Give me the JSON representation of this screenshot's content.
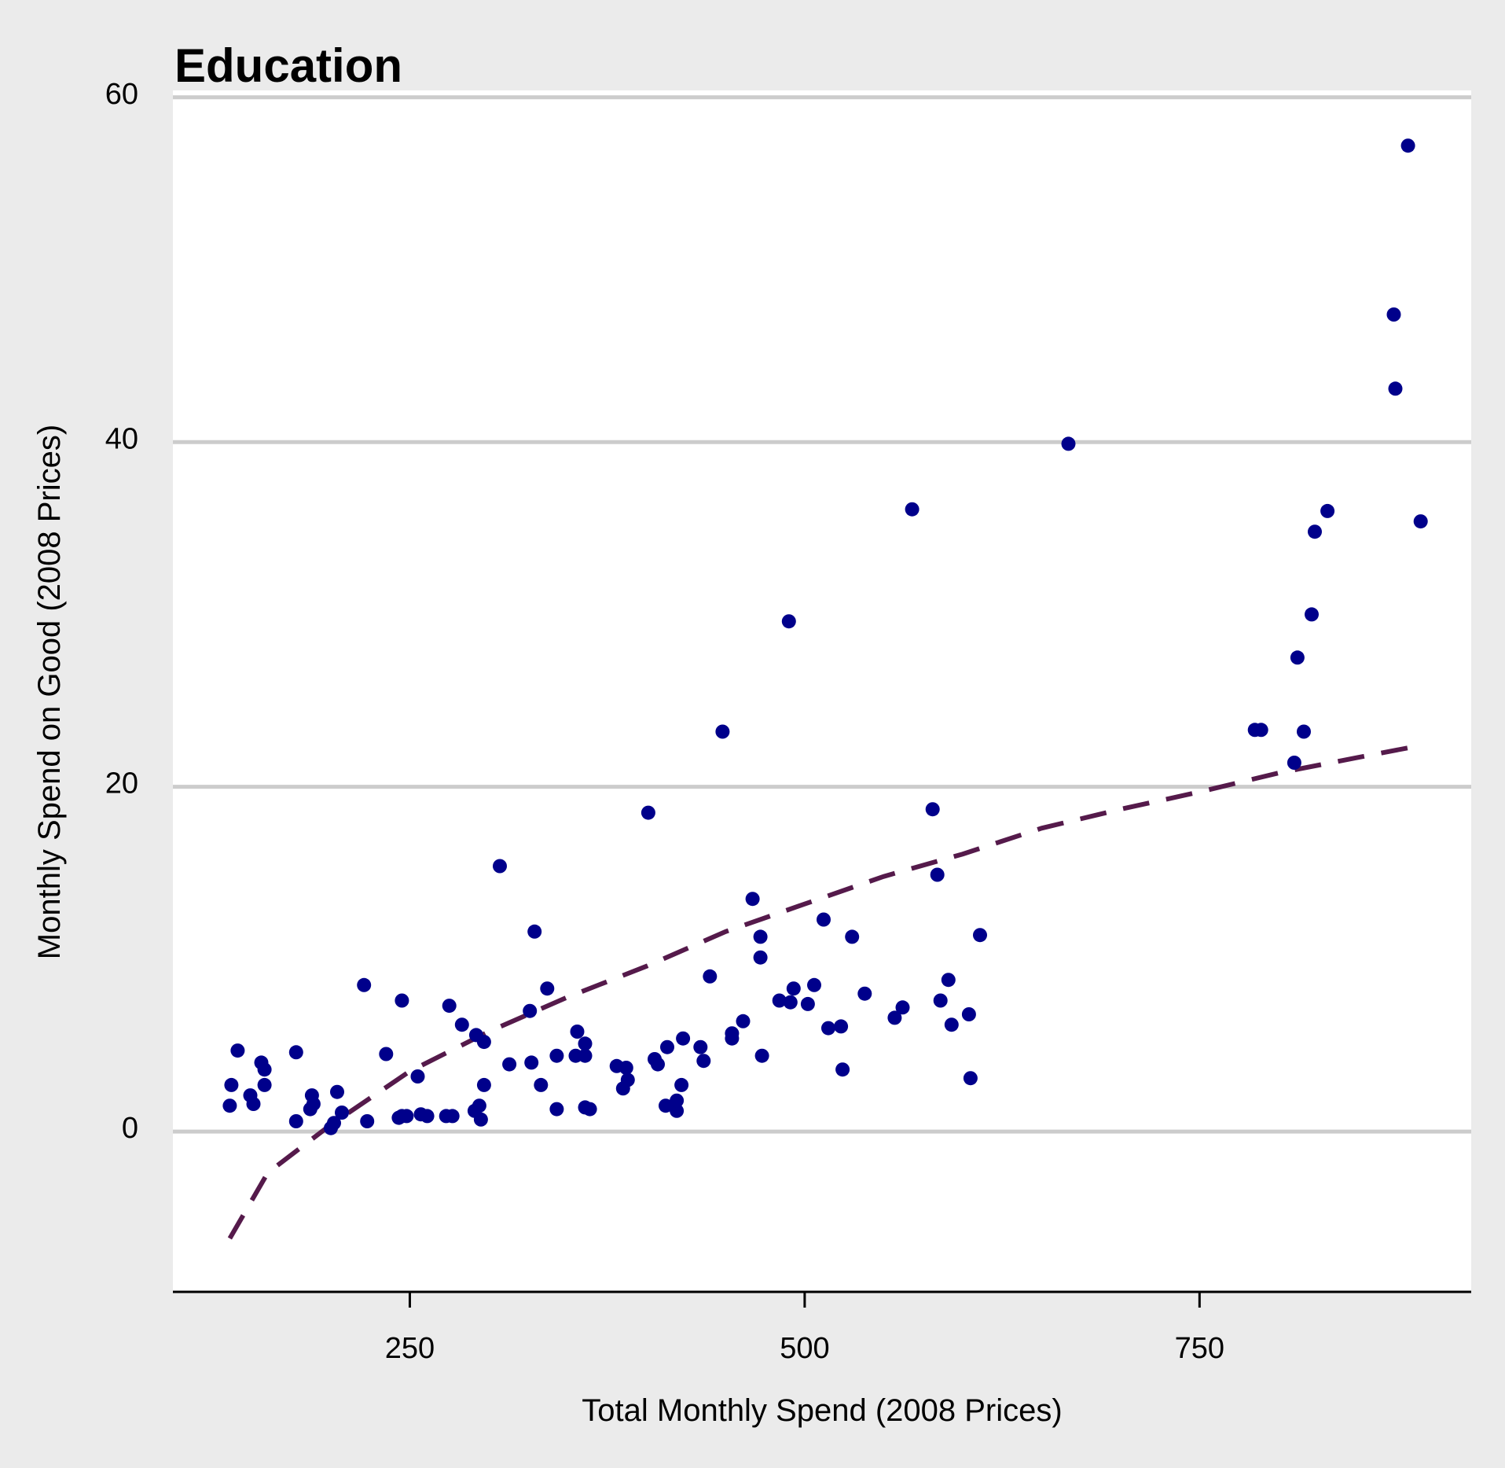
{
  "chart_data": {
    "type": "scatter",
    "title": "Education",
    "xlabel": "Total Monthly Spend (2008 Prices)",
    "ylabel": "Monthly Spend on Good (2008 Prices)",
    "xlim": [
      100,
      922
    ],
    "ylim": [
      -9.3,
      60.4
    ],
    "x_ticks": [
      250,
      500,
      750
    ],
    "x_tick_labels": [
      "250",
      "500",
      "750"
    ],
    "y_ticks": [
      0,
      20,
      40,
      60
    ],
    "y_tick_labels": [
      "0",
      "20",
      "40",
      "60"
    ],
    "grid": "horizontal",
    "colors": {
      "background": "#ebebeb",
      "panel": "#ffffff",
      "gridline": "#cccccc",
      "points": "#00008b",
      "trend_line": "#551a4b"
    },
    "series": [
      {
        "kind": "points",
        "points": [
          [
            136,
            1.5
          ],
          [
            137,
            2.7
          ],
          [
            141,
            4.7
          ],
          [
            149,
            2.1
          ],
          [
            151,
            1.6
          ],
          [
            156,
            4.0
          ],
          [
            158,
            3.6
          ],
          [
            158,
            2.7
          ],
          [
            178,
            4.6
          ],
          [
            178,
            0.6
          ],
          [
            187,
            1.3
          ],
          [
            188,
            2.1
          ],
          [
            189,
            1.6
          ],
          [
            200,
            0.2
          ],
          [
            202,
            0.5
          ],
          [
            204,
            2.3
          ],
          [
            207,
            1.1
          ],
          [
            221,
            8.5
          ],
          [
            223,
            0.6
          ],
          [
            235,
            4.5
          ],
          [
            243,
            0.8
          ],
          [
            245,
            7.6
          ],
          [
            245,
            0.9
          ],
          [
            248,
            0.9
          ],
          [
            255,
            3.2
          ],
          [
            257,
            1.0
          ],
          [
            261,
            0.9
          ],
          [
            273,
            0.9
          ],
          [
            275,
            7.3
          ],
          [
            277,
            0.9
          ],
          [
            283,
            6.2
          ],
          [
            291,
            1.2
          ],
          [
            292,
            5.6
          ],
          [
            294,
            1.5
          ],
          [
            295,
            0.7
          ],
          [
            297,
            5.2
          ],
          [
            297,
            2.7
          ],
          [
            307,
            15.4
          ],
          [
            313,
            3.9
          ],
          [
            326,
            7.0
          ],
          [
            327,
            4.0
          ],
          [
            329,
            11.6
          ],
          [
            333,
            2.7
          ],
          [
            337,
            8.3
          ],
          [
            343,
            4.4
          ],
          [
            343,
            1.3
          ],
          [
            355,
            4.4
          ],
          [
            356,
            5.8
          ],
          [
            361,
            5.1
          ],
          [
            361,
            4.4
          ],
          [
            361,
            1.4
          ],
          [
            364,
            1.3
          ],
          [
            381,
            3.8
          ],
          [
            385,
            2.5
          ],
          [
            387,
            3.7
          ],
          [
            388,
            3.0
          ],
          [
            401,
            18.5
          ],
          [
            405,
            4.2
          ],
          [
            407,
            3.9
          ],
          [
            412,
            1.5
          ],
          [
            413,
            4.9
          ],
          [
            419,
            1.2
          ],
          [
            419,
            1.8
          ],
          [
            422,
            2.7
          ],
          [
            423,
            5.4
          ],
          [
            434,
            4.9
          ],
          [
            436,
            4.1
          ],
          [
            440,
            9.0
          ],
          [
            448,
            23.2
          ],
          [
            454,
            5.4
          ],
          [
            454,
            5.7
          ],
          [
            461,
            6.4
          ],
          [
            467,
            13.5
          ],
          [
            472,
            11.3
          ],
          [
            472,
            10.1
          ],
          [
            473,
            4.4
          ],
          [
            484,
            7.6
          ],
          [
            490,
            29.6
          ],
          [
            491,
            7.5
          ],
          [
            493,
            8.3
          ],
          [
            502,
            7.4
          ],
          [
            506,
            8.5
          ],
          [
            512,
            12.3
          ],
          [
            515,
            6.0
          ],
          [
            523,
            6.1
          ],
          [
            524,
            3.6
          ],
          [
            530,
            11.3
          ],
          [
            538,
            8.0
          ],
          [
            557,
            6.6
          ],
          [
            562,
            7.2
          ],
          [
            568,
            36.1
          ],
          [
            581,
            18.7
          ],
          [
            584,
            14.9
          ],
          [
            586,
            7.6
          ],
          [
            591,
            8.8
          ],
          [
            593,
            6.2
          ],
          [
            604,
            6.8
          ],
          [
            605,
            3.1
          ],
          [
            611,
            11.4
          ],
          [
            667,
            39.9
          ],
          [
            785,
            23.3
          ],
          [
            789,
            23.3
          ],
          [
            810,
            21.4
          ],
          [
            812,
            27.5
          ],
          [
            816,
            23.2
          ],
          [
            821,
            30.0
          ],
          [
            823,
            34.8
          ],
          [
            831,
            36.0
          ],
          [
            873,
            47.4
          ],
          [
            874,
            43.1
          ],
          [
            882,
            57.2
          ],
          [
            890,
            35.4
          ]
        ]
      },
      {
        "kind": "trend-line",
        "style": "dashed",
        "points": [
          [
            136,
            -6.2
          ],
          [
            160,
            -2.4
          ],
          [
            200,
            0.4
          ],
          [
            250,
            3.5
          ],
          [
            300,
            5.8
          ],
          [
            350,
            7.8
          ],
          [
            400,
            9.6
          ],
          [
            450,
            11.6
          ],
          [
            500,
            13.2
          ],
          [
            550,
            14.8
          ],
          [
            600,
            16.1
          ],
          [
            650,
            17.6
          ],
          [
            700,
            18.7
          ],
          [
            750,
            19.7
          ],
          [
            800,
            20.8
          ],
          [
            850,
            21.7
          ],
          [
            890,
            22.4
          ]
        ]
      }
    ]
  }
}
